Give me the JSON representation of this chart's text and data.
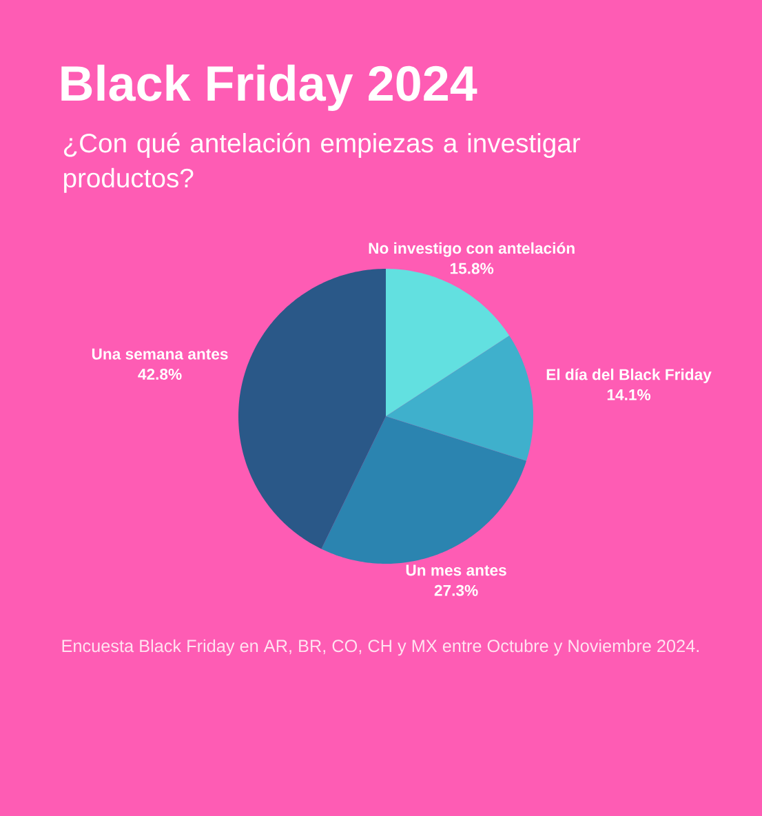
{
  "chart_data": {
    "type": "pie",
    "title": "Black Friday 2024",
    "subtitle": "¿Con qué antelación empiezas a investigar productos?",
    "categories": [
      "No investigo con antelación",
      "El día del Black Friday",
      "Un mes antes",
      "Una semana antes"
    ],
    "values": [
      15.8,
      14.1,
      27.3,
      42.8
    ],
    "colors": [
      "#62e0e0",
      "#3fb0cc",
      "#2b84b0",
      "#2a5888"
    ],
    "value_labels": [
      "15.8%",
      "14.1%",
      "27.3%",
      "42.8%"
    ],
    "annotations": [
      "Encuesta Black Friday en AR, BR, CO, CH y MX entre Octubre y Noviembre 2024."
    ]
  }
}
